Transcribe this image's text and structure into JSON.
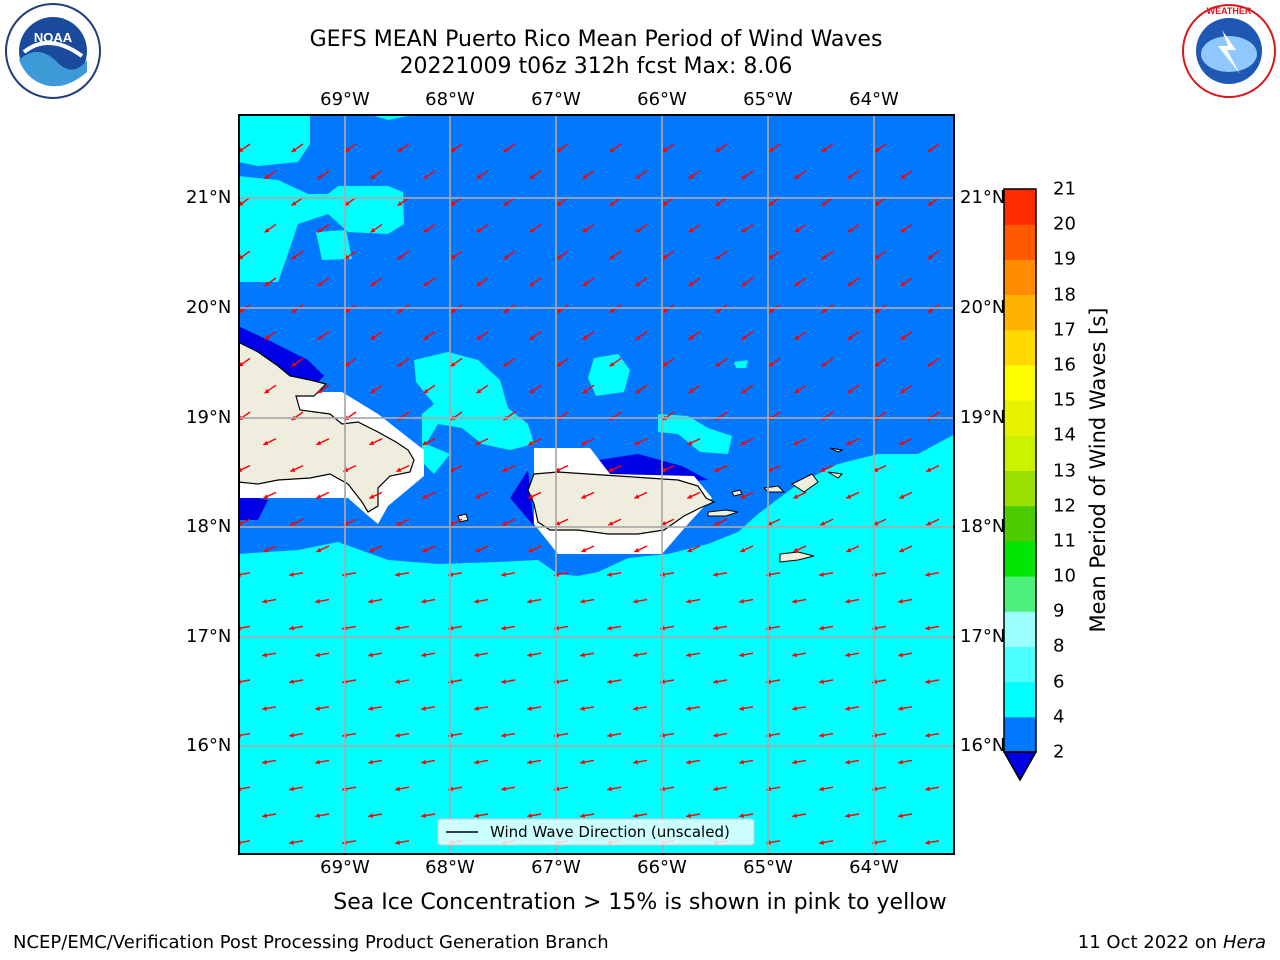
{
  "header": {
    "title_line1": "GEFS MEAN Puerto Rico Mean Period of Wind Waves",
    "title_line2": "20221009 t06z 312h fcst   Max: 8.06"
  },
  "logos": {
    "left": "NOAA",
    "right": "NATIONAL WEATHER SERVICE",
    "left_ring": "NATIONAL OCEANIC AND ATMOSPHERIC ADMINISTRATION · U.S. DEPARTMENT OF COMMERCE"
  },
  "map": {
    "lon_ticks": [
      "69°W",
      "68°W",
      "67°W",
      "66°W",
      "65°W",
      "64°W"
    ],
    "lat_ticks": [
      "21°N",
      "20°N",
      "19°N",
      "18°N",
      "17°N",
      "16°N"
    ],
    "legend_label": "Wind Wave Direction (unscaled)",
    "colors": {
      "ocean_deep_blue": "#0000e6",
      "band_2_4": "#0078ff",
      "band_4_6": "#00ffff",
      "band_6_8": "#4dffff",
      "land": "#efedde",
      "arrows": "#ff0000"
    }
  },
  "colorbar": {
    "label": "Mean Period of Wind Waves [s]",
    "ticks": [
      "2",
      "4",
      "6",
      "8",
      "9",
      "10",
      "11",
      "12",
      "13",
      "14",
      "15",
      "16",
      "17",
      "18",
      "19",
      "20",
      "21"
    ],
    "colors": [
      "#0078ff",
      "#00ffff",
      "#4dffff",
      "#99ffff",
      "#4cf07a",
      "#00e600",
      "#4ccc00",
      "#99e000",
      "#ccf200",
      "#e6f200",
      "#ffff00",
      "#ffd900",
      "#ffb300",
      "#ff8c00",
      "#ff5a00",
      "#ff2a00",
      "#ff0000"
    ],
    "under_color": "#0000e6"
  },
  "note": "Sea Ice Concentration > 15% is shown in pink to yellow",
  "footer": {
    "left": "NCEP/EMC/Verification Post Processing Product Generation Branch",
    "right_date": "11 Oct 2022 on",
    "right_host": "Hera"
  }
}
